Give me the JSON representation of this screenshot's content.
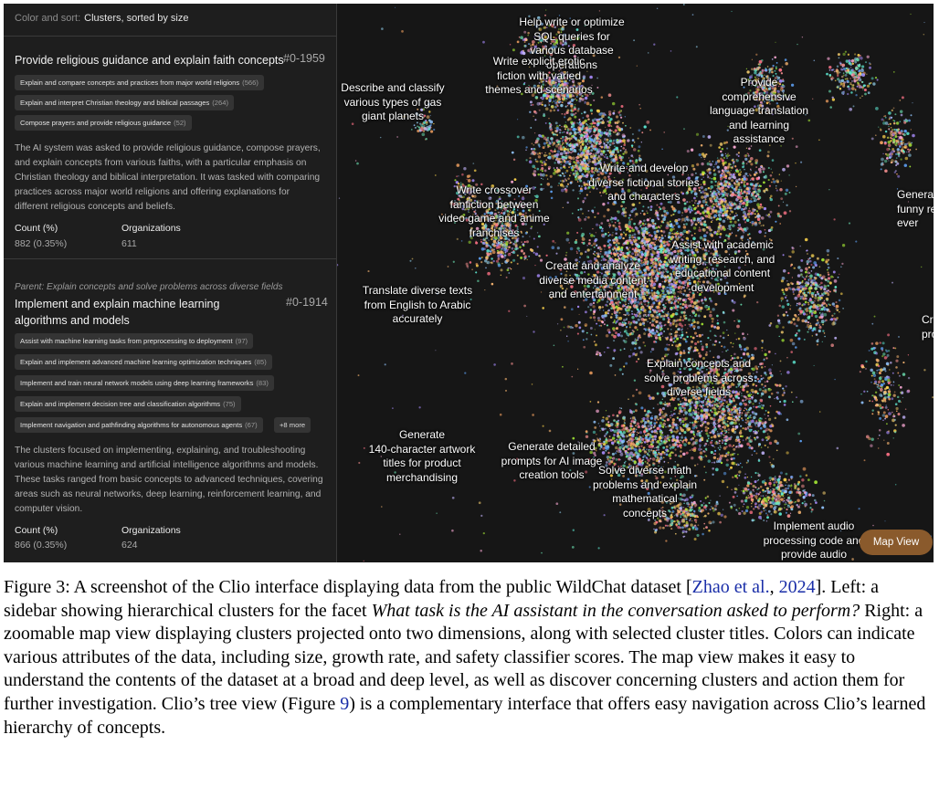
{
  "sidebar": {
    "sort_label": "Color and sort:",
    "sort_value": "Clusters, sorted by size",
    "cluster1": {
      "title": "Provide religious guidance and explain faith concepts",
      "id": "#0-1959",
      "chips": [
        {
          "label": "Explain and compare concepts and practices from major world religions",
          "count": "(566)"
        },
        {
          "label": "Explain and interpret Christian theology and biblical passages",
          "count": "(264)"
        },
        {
          "label": "Compose prayers and provide religious guidance",
          "count": "(52)"
        }
      ],
      "description": "The AI system was asked to provide religious guidance, compose prayers, and explain concepts from various faiths, with a particular emphasis on Christian theology and biblical interpretation. It was tasked with comparing practices across major world religions and offering explanations for different religious concepts and beliefs.",
      "count_label": "Count (%)",
      "count_value": "882 (0.35%)",
      "orgs_label": "Organizations",
      "orgs_value": "611"
    },
    "cluster2": {
      "parent": "Parent: Explain concepts and solve problems across diverse fields",
      "title": "Implement and explain machine learning algorithms and models",
      "id": "#0-1914",
      "chips": [
        {
          "label": "Assist with machine learning tasks from preprocessing to deployment",
          "count": "(97)"
        },
        {
          "label": "Explain and implement advanced machine learning optimization techniques",
          "count": "(85)"
        },
        {
          "label": "Implement and train neural network models using deep learning frameworks",
          "count": "(83)"
        },
        {
          "label": "Explain and implement decision tree and classification algorithms",
          "count": "(75)"
        },
        {
          "label": "Implement navigation and pathfinding algorithms for autonomous agents",
          "count": "(67)"
        }
      ],
      "more": "+8 more",
      "description": "The clusters focused on implementing, explaining, and troubleshooting various machine learning and artificial intelligence algorithms and models. These tasks ranged from basic concepts to advanced techniques, covering areas such as neural networks, deep learning, reinforcement learning, and computer vision.",
      "count_label": "Count (%)",
      "count_value": "866 (0.35%)",
      "orgs_label": "Organizations",
      "orgs_value": "624"
    }
  },
  "map": {
    "labels": [
      "Help write or optimize\nSQL queries for\nvarious database\noperations",
      "Write explicit erotic\nfiction with varied\nthemes and scenarios",
      "Describe and classify\nvarious types of gas\ngiant planets",
      "Provide\ncomprehensive\nlanguage translation\nand learning\nassistance",
      "Write and develop\ndiverse fictional stories\nand characters",
      "Write crossover\nfanfiction between\nvideo game and anime\nfranchises",
      "Assist with academic\nwriting, research, and\neducational content\ndevelopment",
      "Create and analyze\ndiverse media content\nand entertainment",
      "Translate diverse texts\nfrom English to Arabic\naccurately",
      "Explain concepts and\nsolve problems across\ndiverse fields",
      "Generate\n140-character artwork\ntitles for product\nmerchandising",
      "Generate detailed\nprompts for AI image\ncreation tools",
      "Solve diverse math\nproblems and explain\nmathematical\nconcepts",
      "Implement audio\nprocessing code and\nprovide audio"
    ],
    "edge_labels": [
      "Genera\nfunny re\never",
      "Cr\npro"
    ],
    "map_view_button": "Map View"
  },
  "caption": {
    "prefix": "Figure 3: A screenshot of the Clio interface displaying data from the public WildChat dataset [",
    "cite1": "Zhao et al.",
    "mid1": ", ",
    "cite2": "2024",
    "mid2": "]. Left: a sidebar showing hierarchical clusters for the facet ",
    "facet": "What task is the AI assistant in the conversation asked to perform?",
    "mid3": " Right: a zoomable map view displaying clusters projected onto two dimensions, along with selected cluster titles. Colors can indicate various attributes of the data, including size, growth rate, and safety classifier scores. The map view makes it easy to understand the contents of the dataset at a broad and deep level, as well as discover concerning clusters and action them for further investigation. Clio’s tree view (Figure ",
    "fig_ref": "9",
    "suffix": ") is a complementary interface that offers easy navigation across Clio’s learned hierarchy of concepts."
  },
  "colors": {
    "panel": "#1e1e1e",
    "map_bg": "#161616",
    "chip": "#343434",
    "map_button": "#8a5a2c",
    "link": "#1a2ea8"
  }
}
